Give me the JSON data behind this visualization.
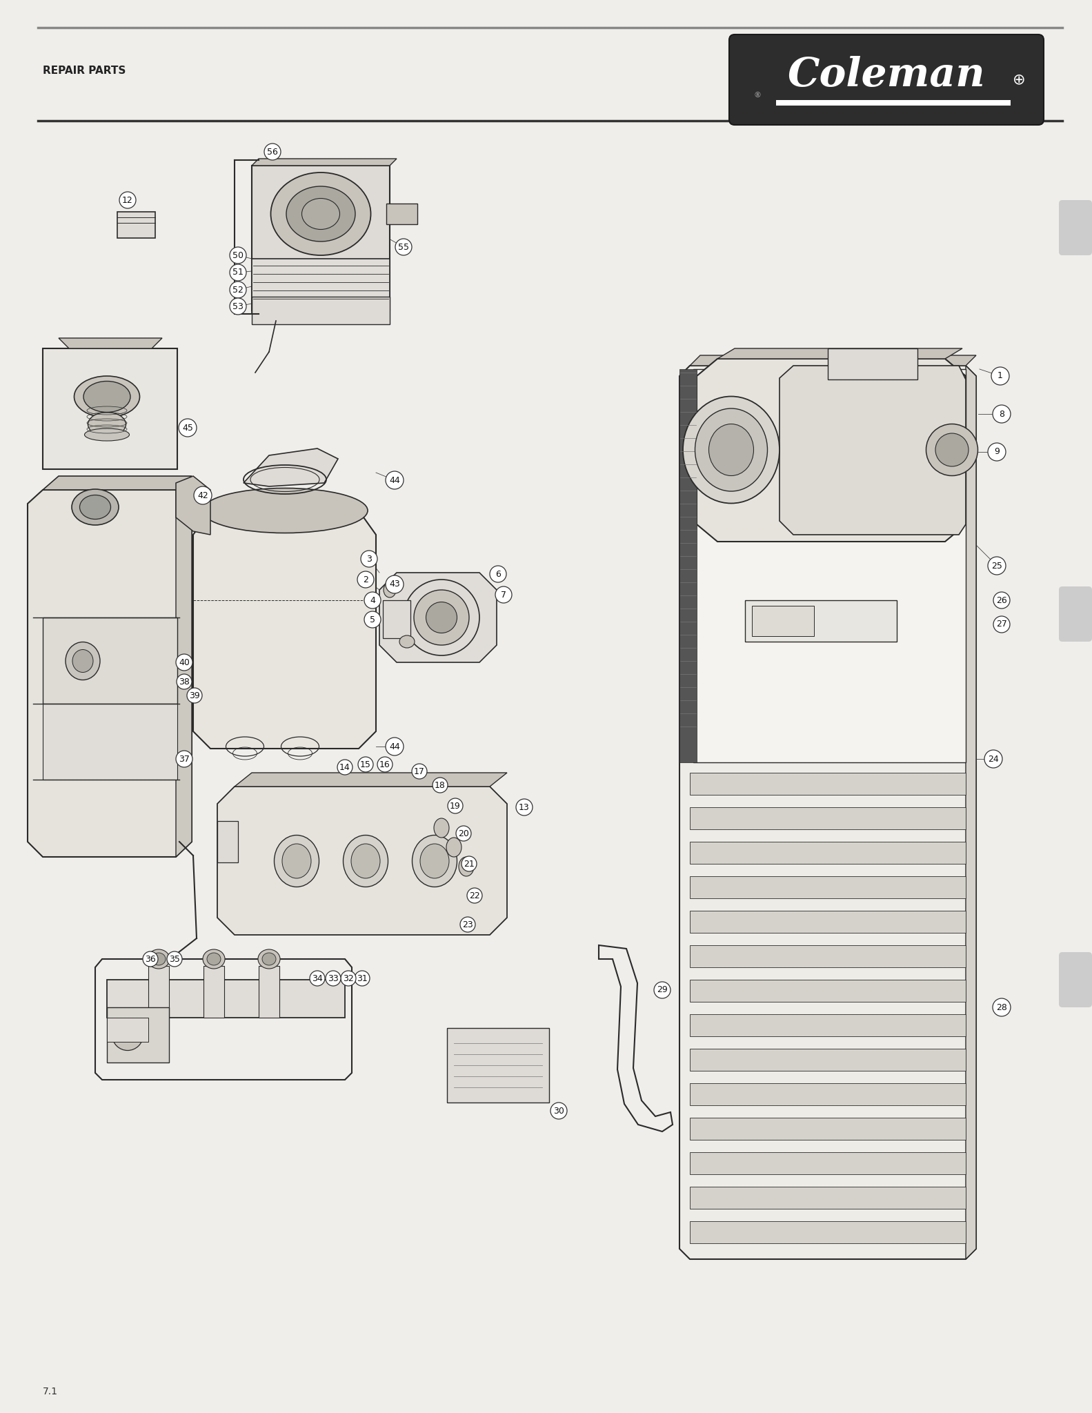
{
  "page_title": "REPAIR PARTS",
  "page_number": "7.1",
  "brand": "Coleman",
  "bg_color": "#f0eeeb",
  "line_color": "#2a2a2a",
  "header_line_color": "#1a1a1a",
  "logo_bg": "#333333",
  "logo_text_color": "#ffffff",
  "parts_label_fontsize": 7.0,
  "title_fontsize": 9.5,
  "figsize": [
    15.83,
    20.48
  ],
  "dpi": 100,
  "part_circle_r": 0.01,
  "part_circle_fs": 5.8,
  "draw_color": "#2a2a2a",
  "fill_light": "#dedad5",
  "fill_mid": "#c8c4bc",
  "fill_dark": "#aaa89f"
}
